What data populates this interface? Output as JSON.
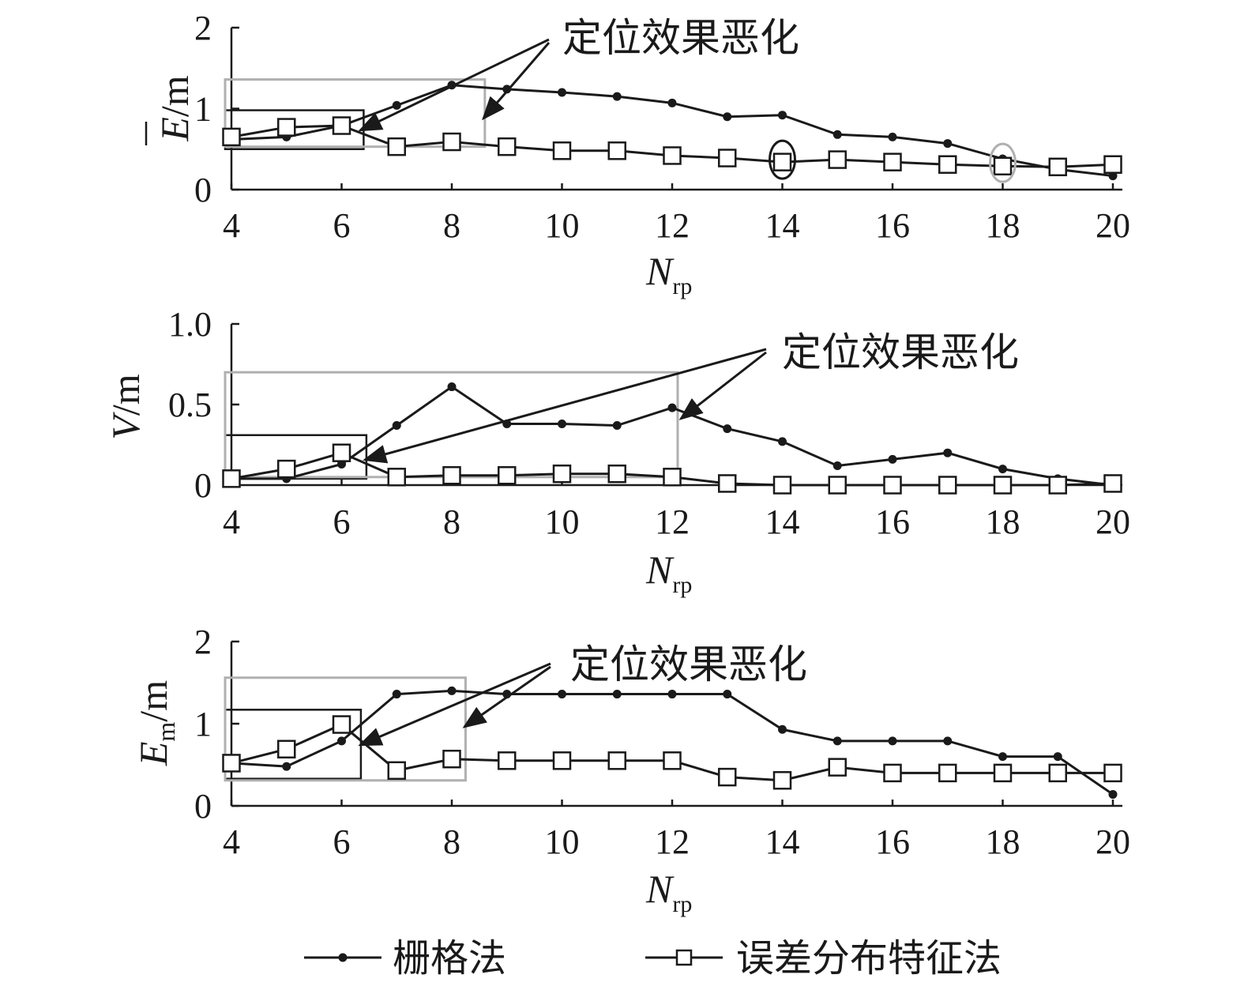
{
  "chart_data": [
    {
      "type": "line",
      "xlabel": "N",
      "xlabel_sub": "rp",
      "ylabel_main": "E",
      "ylabel_unit": "/m",
      "ylabel_overbar": true,
      "xlim": [
        4,
        20
      ],
      "ylim": [
        0,
        2
      ],
      "xticks": [
        "4",
        "6",
        "8",
        "10",
        "12",
        "14",
        "16",
        "18",
        "20"
      ],
      "yticks": [
        "0",
        "1",
        "2"
      ],
      "x": [
        4,
        5,
        6,
        7,
        8,
        9,
        10,
        11,
        12,
        13,
        14,
        15,
        16,
        17,
        18,
        19,
        20
      ],
      "series": [
        {
          "name": "栅格法",
          "marker": "dot",
          "values": [
            0.62,
            0.65,
            0.79,
            1.04,
            1.29,
            1.24,
            1.2,
            1.15,
            1.07,
            0.9,
            0.92,
            0.68,
            0.65,
            0.57,
            0.38,
            0.25,
            0.17
          ]
        },
        {
          "name": "误差分布特征法",
          "marker": "square",
          "values": [
            0.65,
            0.77,
            0.79,
            0.53,
            0.59,
            0.53,
            0.48,
            0.48,
            0.42,
            0.39,
            0.34,
            0.37,
            0.34,
            0.31,
            0.29,
            0.28,
            0.31
          ]
        }
      ],
      "annotation": "定位效果恶化",
      "highlight_boxes": [
        {
          "color": "#1a1a1a",
          "x_range": [
            4,
            6.4
          ],
          "y_range": [
            0.5,
            0.98
          ]
        },
        {
          "color": "#b0b0b0",
          "x_range": [
            4,
            8.6
          ],
          "y_range": [
            0.53,
            1.36
          ]
        }
      ],
      "highlight_ellipses": [
        {
          "color": "#1a1a1a",
          "x": 14,
          "y": 0.37
        },
        {
          "color": "#b0b0b0",
          "x": 18,
          "y": 0.33
        }
      ]
    },
    {
      "type": "line",
      "xlabel": "N",
      "xlabel_sub": "rp",
      "ylabel_main": "V",
      "ylabel_unit": "/m",
      "xlim": [
        4,
        20
      ],
      "ylim": [
        0,
        1.0
      ],
      "xticks": [
        "4",
        "6",
        "8",
        "10",
        "12",
        "14",
        "16",
        "18",
        "20"
      ],
      "yticks": [
        "0",
        "0.5",
        "1.0"
      ],
      "x": [
        4,
        5,
        6,
        7,
        8,
        9,
        10,
        11,
        12,
        13,
        14,
        15,
        16,
        17,
        18,
        19,
        20
      ],
      "series": [
        {
          "name": "栅格法",
          "marker": "dot",
          "values": [
            0.04,
            0.04,
            0.13,
            0.37,
            0.61,
            0.38,
            0.38,
            0.37,
            0.48,
            0.35,
            0.27,
            0.12,
            0.16,
            0.2,
            0.1,
            0.04,
            0.0
          ]
        },
        {
          "name": "误差分布特征法",
          "marker": "square",
          "values": [
            0.04,
            0.1,
            0.2,
            0.05,
            0.06,
            0.06,
            0.07,
            0.07,
            0.05,
            0.01,
            0.0,
            0.0,
            0.0,
            0.0,
            0.0,
            0.0,
            0.01
          ]
        }
      ],
      "annotation": "定位效果恶化",
      "highlight_boxes": [
        {
          "color": "#1a1a1a",
          "x_range": [
            4,
            6.45
          ],
          "y_range": [
            0.04,
            0.31
          ]
        },
        {
          "color": "#b0b0b0",
          "x_range": [
            4,
            12.1
          ],
          "y_range": [
            0.05,
            0.7
          ]
        }
      ]
    },
    {
      "type": "line",
      "xlabel": "N",
      "xlabel_sub": "rp",
      "ylabel_main": "E",
      "ylabel_main_sub": "m",
      "ylabel_unit": "/m",
      "xlim": [
        4,
        20
      ],
      "ylim": [
        0,
        2
      ],
      "xticks": [
        "4",
        "6",
        "8",
        "10",
        "12",
        "14",
        "16",
        "18",
        "20"
      ],
      "yticks": [
        "0",
        "1",
        "2"
      ],
      "x": [
        4,
        5,
        6,
        7,
        8,
        9,
        10,
        11,
        12,
        13,
        14,
        15,
        16,
        17,
        18,
        19,
        20
      ],
      "series": [
        {
          "name": "栅格法",
          "marker": "dot",
          "values": [
            0.52,
            0.48,
            0.79,
            1.36,
            1.4,
            1.36,
            1.36,
            1.36,
            1.36,
            1.36,
            0.93,
            0.79,
            0.79,
            0.79,
            0.6,
            0.6,
            0.14
          ]
        },
        {
          "name": "误差分布特征法",
          "marker": "square",
          "values": [
            0.52,
            0.69,
            0.99,
            0.43,
            0.57,
            0.55,
            0.55,
            0.55,
            0.55,
            0.35,
            0.31,
            0.47,
            0.4,
            0.4,
            0.4,
            0.4,
            0.4
          ]
        }
      ],
      "annotation": "定位效果恶化",
      "highlight_boxes": [
        {
          "color": "#1a1a1a",
          "x_range": [
            4,
            6.35
          ],
          "y_range": [
            0.33,
            1.17
          ]
        },
        {
          "color": "#b0b0b0",
          "x_range": [
            4,
            8.25
          ],
          "y_range": [
            0.31,
            1.56
          ]
        }
      ]
    }
  ],
  "legend": {
    "position": "bottom-center",
    "items": [
      {
        "label": "栅格法",
        "marker": "dot"
      },
      {
        "label": "误差分布特征法",
        "marker": "square"
      }
    ]
  }
}
